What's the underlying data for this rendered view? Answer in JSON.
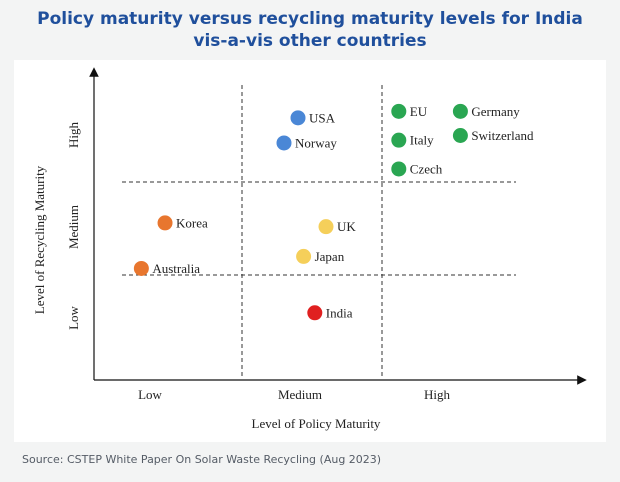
{
  "title": {
    "line1": "Policy maturity versus recycling maturity levels for India",
    "line2": "vis-a-vis other countries"
  },
  "source": "Source: CSTEP White Paper On Solar Waste Recycling (Aug 2023)",
  "colors": {
    "title": "#1f4f9c",
    "blue": "#4a87d6",
    "green": "#2aa652",
    "orange": "#e8762e",
    "yellow": "#f5cf5a",
    "red": "#e02020"
  },
  "chart_data": {
    "type": "scatter",
    "xlabel": "Level of Policy Maturity",
    "ylabel": "Level of Recycling Maturity",
    "x_categories": [
      "Low",
      "Medium",
      "High"
    ],
    "y_categories": [
      "Low",
      "Medium",
      "High"
    ],
    "xlim": [
      0,
      3
    ],
    "ylim": [
      0,
      3
    ],
    "grid": "dashed lines separating the three levels on each axis",
    "points": [
      {
        "label": "USA",
        "x": 1.4,
        "y": 2.69,
        "color": "blue"
      },
      {
        "label": "Norway",
        "x": 1.3,
        "y": 2.42,
        "color": "blue"
      },
      {
        "label": "EU",
        "x": 2.12,
        "y": 2.76,
        "color": "green"
      },
      {
        "label": "Germany",
        "x": 2.56,
        "y": 2.76,
        "color": "green"
      },
      {
        "label": "Italy",
        "x": 2.12,
        "y": 2.45,
        "color": "green"
      },
      {
        "label": "Switzerland",
        "x": 2.56,
        "y": 2.5,
        "color": "green"
      },
      {
        "label": "Czech",
        "x": 2.12,
        "y": 2.14,
        "color": "green"
      },
      {
        "label": "Korea",
        "x": 0.48,
        "y": 1.56,
        "color": "orange"
      },
      {
        "label": "Australia",
        "x": 0.32,
        "y": 1.07,
        "color": "orange"
      },
      {
        "label": "UK",
        "x": 1.6,
        "y": 1.52,
        "color": "yellow"
      },
      {
        "label": "Japan",
        "x": 1.44,
        "y": 1.2,
        "color": "yellow"
      },
      {
        "label": "India",
        "x": 1.52,
        "y": 0.64,
        "color": "red"
      }
    ]
  }
}
